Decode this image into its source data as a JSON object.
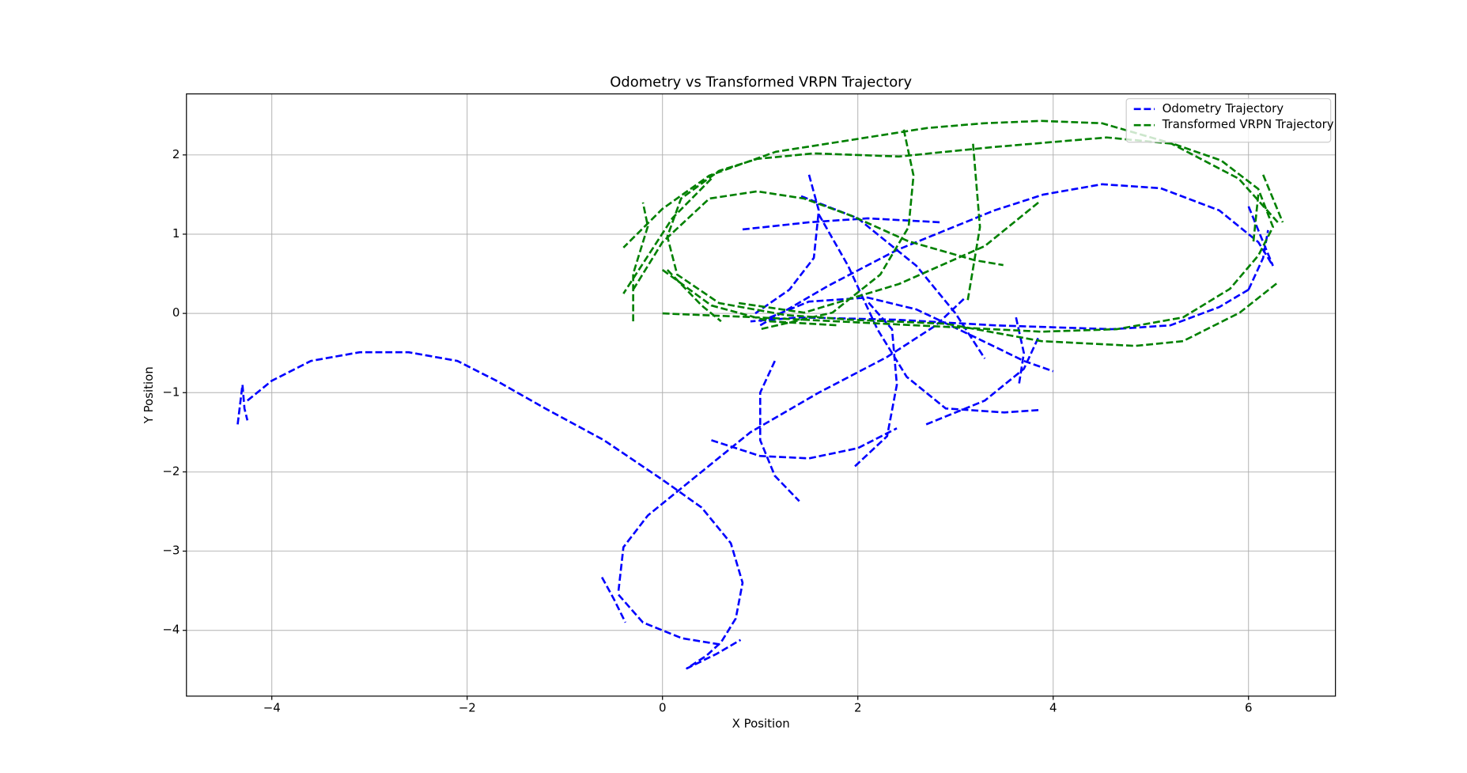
{
  "chart_data": {
    "type": "line",
    "title": "Odometry vs Transformed VRPN Trajectory",
    "x_label": "X Position",
    "y_label": "Y Position",
    "xlim": [
      -4.874,
      6.89
    ],
    "ylim": [
      -4.83,
      2.77
    ],
    "xticks": [
      {
        "value": -4,
        "label": "−4"
      },
      {
        "value": -2,
        "label": "−2"
      },
      0,
      2,
      4,
      6
    ],
    "yticks": [
      {
        "value": -4,
        "label": "−4"
      },
      {
        "value": -3,
        "label": "−3"
      },
      {
        "value": -2,
        "label": "−2"
      },
      {
        "value": -1,
        "label": "−1"
      },
      0,
      1,
      2
    ],
    "grid": true,
    "legend": "upper right",
    "line_style": "dashed",
    "series": [
      {
        "name": "Odometry Trajectory",
        "color": "#0000ff",
        "x": [
          -4.35,
          -4.3,
          -4.28,
          -4.25,
          null,
          -4.25,
          -4.0,
          -3.6,
          -3.1,
          -2.6,
          -2.1,
          -1.7,
          -1.2,
          -0.6,
          0,
          0.4,
          0.7,
          0.82,
          0.75,
          0.6,
          0.45,
          0.25,
          0.55,
          0.8,
          null,
          -0.62,
          -0.5,
          -0.38,
          null,
          -0.45,
          -0.2,
          0.2,
          0.6,
          null,
          -0.45,
          -0.4,
          -0.15,
          0.3,
          0.9,
          1.6,
          2.3,
          2.8,
          3.1,
          null,
          1.0,
          1.7,
          2.4,
          2.9,
          3.4,
          3.9,
          4.5,
          5.1,
          5.7,
          6.1,
          6.25,
          null,
          6.0,
          5.7,
          5.2,
          4.6,
          3.4,
          2.4,
          1.4,
          0.9,
          null,
          1.5,
          1.6,
          1.55,
          1.3,
          0.95,
          null,
          1.42,
          2.0,
          2.6,
          3.0,
          3.3,
          null,
          0.82,
          1.5,
          2.1,
          2.85,
          null,
          1.0,
          1.5,
          2.1,
          2.6,
          3.2,
          3.7,
          4.0,
          null,
          3.62,
          3.7,
          3.65,
          null,
          1.6,
          1.9,
          2.2,
          2.5,
          2.9,
          3.5,
          3.85,
          null,
          2.7,
          3.3,
          3.7,
          3.85,
          null,
          0.5,
          1.0,
          1.5,
          2.0,
          2.4,
          null,
          1.97,
          2.3,
          2.4,
          2.35,
          2.1,
          null,
          1.15,
          1.0,
          1.0,
          1.15,
          1.4,
          null,
          6.0,
          6.15,
          6.25,
          null,
          6.0,
          6.15,
          6.2
        ],
        "y": [
          -1.4,
          -0.9,
          -1.2,
          -1.35,
          null,
          -1.1,
          -0.85,
          -0.6,
          -0.49,
          -0.49,
          -0.6,
          -0.85,
          -1.2,
          -1.6,
          -2.1,
          -2.45,
          -2.9,
          -3.4,
          -3.85,
          -4.15,
          -4.32,
          -4.48,
          -4.3,
          -4.12,
          null,
          -3.33,
          -3.6,
          -3.9,
          null,
          -3.55,
          -3.9,
          -4.1,
          -4.18,
          null,
          -3.5,
          -2.95,
          -2.55,
          -2.1,
          -1.5,
          -1.0,
          -0.55,
          -0.15,
          0.2,
          null,
          -0.15,
          0.35,
          0.8,
          1.05,
          1.3,
          1.5,
          1.63,
          1.58,
          1.3,
          0.9,
          0.6,
          null,
          0.3,
          0.08,
          -0.15,
          -0.2,
          -0.15,
          -0.08,
          -0.05,
          -0.1,
          null,
          1.75,
          1.3,
          0.7,
          0.3,
          0.0,
          null,
          1.48,
          1.2,
          0.6,
          0.0,
          -0.57,
          null,
          1.06,
          1.15,
          1.2,
          1.15,
          null,
          -0.1,
          0.15,
          0.2,
          0.05,
          -0.3,
          -0.6,
          -0.73,
          null,
          -0.05,
          -0.5,
          -0.9,
          null,
          1.25,
          0.6,
          -0.2,
          -0.8,
          -1.2,
          -1.25,
          -1.22,
          null,
          -1.4,
          -1.1,
          -0.7,
          -0.3,
          null,
          -1.6,
          -1.8,
          -1.83,
          -1.7,
          -1.45,
          null,
          -1.93,
          -1.55,
          -0.9,
          -0.2,
          0.15,
          null,
          -0.6,
          -1.0,
          -1.6,
          -2.05,
          -2.37,
          null,
          1.35,
          0.9,
          0.6,
          null,
          0.3,
          0.7,
          1.05
        ]
      },
      {
        "name": "Transformed VRPN Trajectory",
        "color": "#008000",
        "x": [
          0,
          0.97,
          1.94,
          2.9,
          3.88,
          4.65,
          5.33,
          5.81,
          6.1,
          6.25,
          6.1,
          5.72,
          5.23,
          4.55,
          3.39,
          2.42,
          1.55,
          0.97,
          0.58,
          0.19,
          0.05,
          0.15,
          0.58,
          1.26,
          1.94,
          2.9,
          3.88,
          4.84,
          5.33,
          5.91,
          6.3,
          null,
          6.3,
          5.9,
          5.2,
          4.5,
          3.88,
          3.29,
          2.71,
          1.94,
          1.16,
          0.48,
          0,
          -0.4,
          null,
          -0.3,
          0.0,
          0.48,
          0.97,
          1.45,
          1.94,
          2.52,
          3.2,
          3.49,
          null,
          0.78,
          1.45,
          2.42,
          3.3,
          3.85,
          null,
          2.47,
          2.57,
          2.52,
          2.23,
          1.74,
          1.0,
          null,
          3.18,
          3.25,
          3.12,
          null,
          -0.3,
          -0.3,
          -0.15,
          -0.2,
          null,
          0.0,
          0.5,
          1.1,
          1.8,
          null,
          6.15,
          6.35,
          null,
          6.1,
          6.05,
          null,
          0.5,
          0.1,
          -0.4,
          null,
          0.05,
          0.4,
          0.6
        ],
        "y": [
          0,
          -0.05,
          -0.11,
          -0.17,
          -0.23,
          -0.2,
          -0.05,
          0.31,
          0.73,
          1.09,
          1.57,
          1.93,
          2.14,
          2.22,
          2.1,
          1.98,
          2.02,
          1.95,
          1.8,
          1.45,
          0.97,
          0.49,
          0.13,
          -0.02,
          -0.08,
          -0.13,
          -0.35,
          -0.41,
          -0.35,
          0.01,
          0.39,
          null,
          1.15,
          1.7,
          2.15,
          2.4,
          2.43,
          2.4,
          2.34,
          2.19,
          2.04,
          1.74,
          1.32,
          0.83,
          null,
          0.3,
          0.9,
          1.45,
          1.54,
          1.45,
          1.23,
          0.91,
          0.67,
          0.61,
          null,
          0.13,
          0.01,
          0.37,
          0.85,
          1.4,
          null,
          2.32,
          1.74,
          1.09,
          0.49,
          0.01,
          -0.2,
          null,
          2.14,
          1.09,
          0.13,
          null,
          -0.1,
          0.5,
          1.1,
          1.4,
          null,
          0.55,
          0.1,
          -0.1,
          -0.15,
          null,
          1.75,
          1.15,
          null,
          1.5,
          0.9,
          null,
          1.7,
          1.2,
          0.25,
          null,
          0.55,
          0.1,
          -0.1
        ]
      }
    ]
  }
}
